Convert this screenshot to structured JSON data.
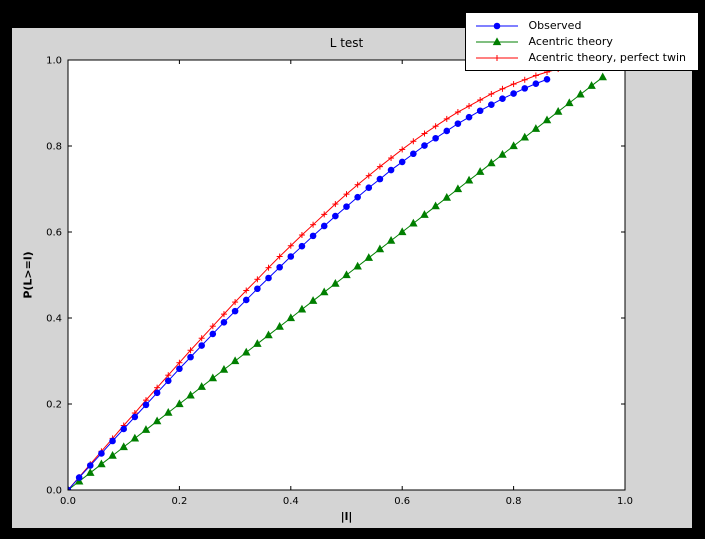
{
  "figure": {
    "title": "L test",
    "xlabel": "|l|",
    "ylabel": "P(L>=l)",
    "bg_page": "#000000",
    "bg_figure": "#d4d4d4",
    "bg_axes": "#ffffff"
  },
  "legend": {
    "entries": [
      {
        "label": "Observed",
        "color": "#0000ff",
        "marker": "circle"
      },
      {
        "label": "Acentric theory",
        "color": "#007f00",
        "marker": "triangle"
      },
      {
        "label": "Acentric theory, perfect twin",
        "color": "#ff0000",
        "marker": "plus"
      }
    ]
  },
  "chart_data": {
    "type": "line",
    "title": "L test",
    "xlabel": "|l|",
    "ylabel": "P(L>=l)",
    "xlim": [
      0,
      1.0
    ],
    "ylim": [
      0,
      1.0
    ],
    "xticks": [
      0,
      0.2,
      0.4,
      0.6,
      0.8,
      1.0
    ],
    "yticks": [
      0,
      0.2,
      0.4,
      0.6,
      0.8,
      1.0
    ],
    "grid": false,
    "legend_position": "upper right, overlapping top of axes",
    "series": [
      {
        "name": "Observed",
        "color": "#0000ff",
        "marker": "circle",
        "x": [
          0,
          0.02,
          0.04,
          0.06,
          0.08,
          0.1,
          0.12,
          0.14,
          0.16,
          0.18,
          0.2,
          0.22,
          0.24,
          0.26,
          0.28,
          0.3,
          0.32,
          0.34,
          0.36,
          0.38,
          0.4,
          0.42,
          0.44,
          0.46,
          0.48,
          0.5,
          0.52,
          0.54,
          0.56,
          0.58,
          0.6,
          0.62,
          0.64,
          0.66,
          0.68,
          0.7,
          0.72,
          0.74,
          0.76,
          0.78,
          0.8,
          0.82,
          0.84,
          0.86
        ],
        "y": [
          0,
          0.029,
          0.057,
          0.085,
          0.114,
          0.142,
          0.17,
          0.198,
          0.226,
          0.254,
          0.282,
          0.309,
          0.336,
          0.363,
          0.39,
          0.416,
          0.442,
          0.468,
          0.493,
          0.518,
          0.543,
          0.567,
          0.591,
          0.614,
          0.637,
          0.659,
          0.681,
          0.703,
          0.723,
          0.744,
          0.763,
          0.782,
          0.801,
          0.818,
          0.835,
          0.852,
          0.867,
          0.882,
          0.896,
          0.91,
          0.922,
          0.934,
          0.945,
          0.955
        ]
      },
      {
        "name": "Acentric theory",
        "color": "#007f00",
        "marker": "triangle",
        "x": [
          0,
          0.02,
          0.04,
          0.06,
          0.08,
          0.1,
          0.12,
          0.14,
          0.16,
          0.18,
          0.2,
          0.22,
          0.24,
          0.26,
          0.28,
          0.3,
          0.32,
          0.34,
          0.36,
          0.38,
          0.4,
          0.42,
          0.44,
          0.46,
          0.48,
          0.5,
          0.52,
          0.54,
          0.56,
          0.58,
          0.6,
          0.62,
          0.64,
          0.66,
          0.68,
          0.7,
          0.72,
          0.74,
          0.76,
          0.78,
          0.8,
          0.82,
          0.84,
          0.86,
          0.88,
          0.9,
          0.92,
          0.94,
          0.96
        ],
        "y": [
          0,
          0.02,
          0.04,
          0.06,
          0.08,
          0.1,
          0.12,
          0.14,
          0.16,
          0.18,
          0.2,
          0.22,
          0.24,
          0.26,
          0.28,
          0.3,
          0.32,
          0.34,
          0.36,
          0.38,
          0.4,
          0.42,
          0.44,
          0.46,
          0.48,
          0.5,
          0.52,
          0.54,
          0.56,
          0.58,
          0.6,
          0.62,
          0.64,
          0.66,
          0.68,
          0.7,
          0.72,
          0.74,
          0.76,
          0.78,
          0.8,
          0.82,
          0.84,
          0.86,
          0.88,
          0.9,
          0.92,
          0.94,
          0.96
        ]
      },
      {
        "name": "Acentric theory, perfect twin",
        "color": "#ff0000",
        "marker": "plus",
        "x": [
          0,
          0.02,
          0.04,
          0.06,
          0.08,
          0.1,
          0.12,
          0.14,
          0.16,
          0.18,
          0.2,
          0.22,
          0.24,
          0.26,
          0.28,
          0.3,
          0.32,
          0.34,
          0.36,
          0.38,
          0.4,
          0.42,
          0.44,
          0.46,
          0.48,
          0.5,
          0.52,
          0.54,
          0.56,
          0.58,
          0.6,
          0.62,
          0.64,
          0.66,
          0.68,
          0.7,
          0.72,
          0.74,
          0.76,
          0.78,
          0.8,
          0.82,
          0.84,
          0.86,
          0.88
        ],
        "y": [
          0,
          0.03,
          0.06,
          0.09,
          0.12,
          0.15,
          0.179,
          0.209,
          0.238,
          0.267,
          0.296,
          0.325,
          0.353,
          0.381,
          0.409,
          0.437,
          0.464,
          0.49,
          0.517,
          0.543,
          0.568,
          0.593,
          0.617,
          0.641,
          0.665,
          0.688,
          0.71,
          0.731,
          0.752,
          0.772,
          0.792,
          0.811,
          0.829,
          0.846,
          0.863,
          0.879,
          0.893,
          0.907,
          0.921,
          0.933,
          0.944,
          0.954,
          0.964,
          0.972,
          0.979
        ]
      }
    ]
  }
}
